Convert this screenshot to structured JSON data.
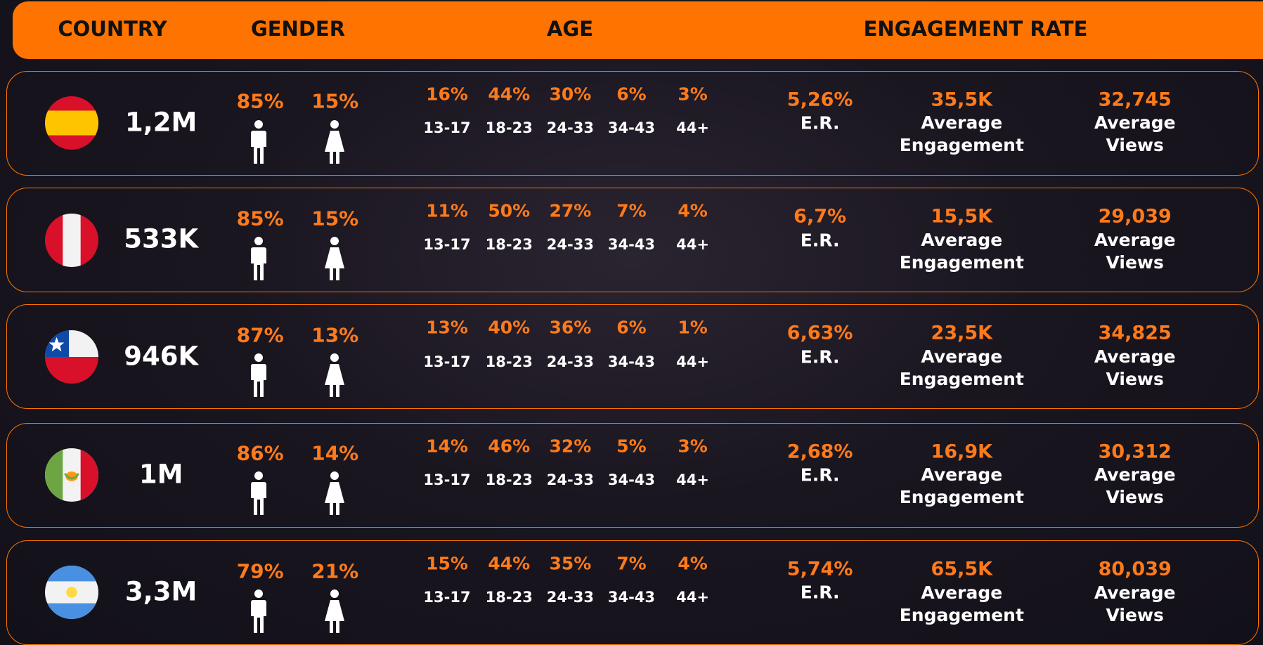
{
  "header": {
    "columns": [
      "COUNTRY",
      "GENDER",
      "AGE",
      "ENGAGEMENT RATE"
    ]
  },
  "age_brackets": [
    "13-17",
    "18-23",
    "24-33",
    "34-43",
    "44+"
  ],
  "labels": {
    "er": "E.R.",
    "average_engagement": "Average Engagement",
    "average_views": "Average Views"
  },
  "rows": [
    {
      "audience": "1,2M",
      "male": "85%",
      "female": "15%",
      "age": [
        "16%",
        "44%",
        "30%",
        "6%",
        "3%"
      ],
      "er": "5,26%",
      "average_engagement": "35,5K",
      "average_views": "32,745"
    },
    {
      "audience": "533K",
      "male": "85%",
      "female": "15%",
      "age": [
        "11%",
        "50%",
        "27%",
        "7%",
        "4%"
      ],
      "er": "6,7%",
      "average_engagement": "15,5K",
      "average_views": "29,039"
    },
    {
      "audience": "946K",
      "male": "87%",
      "female": "13%",
      "age": [
        "13%",
        "40%",
        "36%",
        "6%",
        "1%"
      ],
      "er": "6,63%",
      "average_engagement": "23,5K",
      "average_views": "34,825"
    },
    {
      "audience": "1M",
      "male": "86%",
      "female": "14%",
      "age": [
        "14%",
        "46%",
        "32%",
        "5%",
        "3%"
      ],
      "er": "2,68%",
      "average_engagement": "16,9K",
      "average_views": "30,312"
    },
    {
      "audience": "3,3M",
      "male": "79%",
      "female": "21%",
      "age": [
        "15%",
        "44%",
        "35%",
        "7%",
        "4%"
      ],
      "er": "5,74%",
      "average_engagement": "65,5K",
      "average_views": "80,039"
    }
  ]
}
